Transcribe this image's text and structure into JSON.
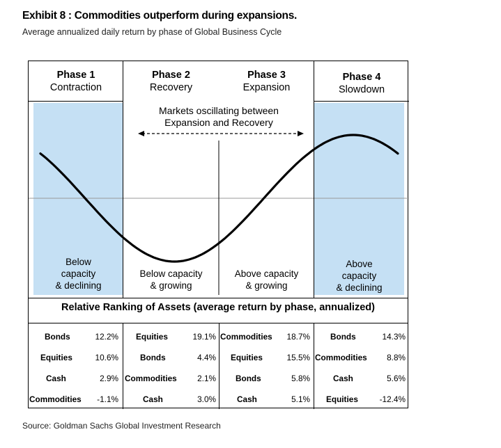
{
  "exhibit": {
    "title": "Exhibit 8 : Commodities outperform during expansions.",
    "subtitle": "Average annualized daily return by phase of Global Business Cycle",
    "source": "Source: Goldman Sachs Global Investment Research"
  },
  "phases": [
    {
      "name": "Phase 1",
      "label": "Contraction"
    },
    {
      "name": "Phase 2",
      "label": "Recovery"
    },
    {
      "name": "Phase 3",
      "label": "Expansion"
    },
    {
      "name": "Phase 4",
      "label": "Slowdown"
    }
  ],
  "oscillation_note": {
    "line1": "Markets oscillating between",
    "line2": "Expansion and Recovery"
  },
  "capacity_notes": [
    {
      "line1": "Below",
      "line2": "capacity",
      "line3": "& declining"
    },
    {
      "line1": "Below capacity",
      "line2": "& growing"
    },
    {
      "line1": "Above capacity",
      "line2": "& growing"
    },
    {
      "line1": "Above",
      "line2": "capacity",
      "line3": "& declining"
    }
  ],
  "ranking_title": "Relative Ranking of Assets (average return by phase, annualized)",
  "rankings": [
    [
      {
        "asset": "Bonds",
        "value": "12.2%"
      },
      {
        "asset": "Equities",
        "value": "10.6%"
      },
      {
        "asset": "Cash",
        "value": "2.9%"
      },
      {
        "asset": "Commodities",
        "value": "-1.1%"
      }
    ],
    [
      {
        "asset": "Equities",
        "value": "19.1%"
      },
      {
        "asset": "Bonds",
        "value": "4.4%"
      },
      {
        "asset": "Commodities",
        "value": "2.1%"
      },
      {
        "asset": "Cash",
        "value": "3.0%"
      }
    ],
    [
      {
        "asset": "Commodities",
        "value": "18.7%"
      },
      {
        "asset": "Equities",
        "value": "15.5%"
      },
      {
        "asset": "Bonds",
        "value": "5.8%"
      },
      {
        "asset": "Cash",
        "value": "5.1%"
      }
    ],
    [
      {
        "asset": "Bonds",
        "value": "14.3%"
      },
      {
        "asset": "Commodities",
        "value": "8.8%"
      },
      {
        "asset": "Cash",
        "value": "5.6%"
      },
      {
        "asset": "Equities",
        "value": "-12.4%"
      }
    ]
  ],
  "colors": {
    "shade": "#c5e0f4",
    "curve": "#000000",
    "axis": "#999999"
  }
}
